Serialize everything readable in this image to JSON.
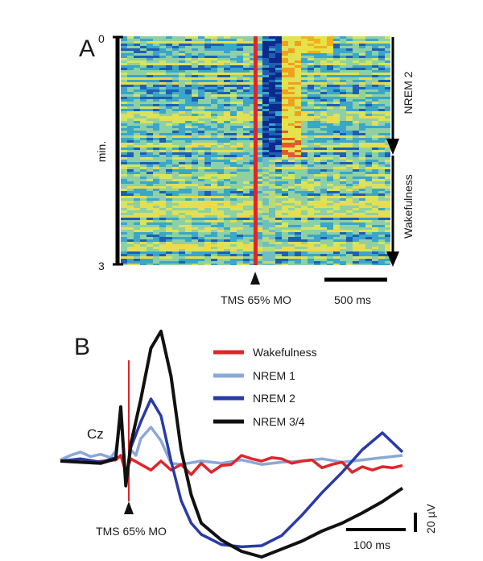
{
  "panel_a": {
    "label": "A",
    "y_axis": {
      "label": "min.",
      "tick_top": "0",
      "tick_bottom": "3"
    },
    "stage_top": "NREM 2",
    "stage_bottom": "Wakefulness",
    "stimulus_label": "TMS 65% MO",
    "scalebar_label": "500 ms",
    "colors": {
      "stimulus_line": "#e0252a",
      "low": "#0b2a8c",
      "mid": "#e6e24a",
      "high": "#f0a020"
    }
  },
  "panel_b": {
    "label": "B",
    "channel_label": "Cz",
    "stimulus_label": "TMS 65% MO",
    "scalebar_time": "100 ms",
    "scalebar_amp": "20 µV",
    "legend": [
      {
        "name": "Wakefulness",
        "color": "#e0252a"
      },
      {
        "name": "NREM 1",
        "color": "#8aa8d8"
      },
      {
        "name": "NREM 2",
        "color": "#2a3aa8"
      },
      {
        "name": "NREM 3/4",
        "color": "#111111"
      }
    ]
  },
  "chart_data": {
    "type": "line",
    "series": [
      {
        "name": "Wakefulness",
        "color": "#e0252a",
        "x": [
          0,
          30,
          55,
          60,
          65,
          70,
          80,
          90,
          100,
          110,
          120,
          130,
          140,
          150,
          160,
          170,
          180,
          190,
          200,
          210,
          220,
          230,
          240,
          250,
          260,
          270,
          280,
          290,
          300,
          310,
          320,
          330,
          340
        ],
        "y": [
          0,
          -1,
          1,
          5,
          -10,
          2,
          -3,
          -8,
          0,
          -8,
          -3,
          -12,
          -2,
          -10,
          -4,
          -3,
          5,
          2,
          0,
          3,
          2,
          -2,
          0,
          1,
          -6,
          -3,
          -1,
          -10,
          -5,
          -8,
          -5,
          -6,
          -4
        ]
      },
      {
        "name": "NREM 1",
        "color": "#8aa8d8",
        "x": [
          0,
          10,
          20,
          30,
          40,
          50,
          55,
          60,
          65,
          70,
          75,
          80,
          90,
          100,
          110,
          120,
          140,
          160,
          180,
          200,
          220,
          240,
          260,
          280,
          300,
          320,
          340
        ],
        "y": [
          1,
          5,
          8,
          4,
          6,
          3,
          9,
          40,
          -18,
          10,
          5,
          20,
          30,
          18,
          -2,
          -3,
          0,
          -2,
          1,
          -3,
          -1,
          0,
          2,
          -1,
          1,
          3,
          5
        ]
      },
      {
        "name": "NREM 2",
        "color": "#2a3aa8",
        "x": [
          0,
          20,
          40,
          55,
          60,
          65,
          70,
          80,
          90,
          100,
          110,
          120,
          130,
          140,
          160,
          180,
          200,
          220,
          240,
          260,
          280,
          300,
          320,
          340
        ],
        "y": [
          0,
          2,
          -1,
          3,
          45,
          -20,
          12,
          35,
          55,
          40,
          0,
          -35,
          -55,
          -65,
          -74,
          -76,
          -75,
          -66,
          -48,
          -28,
          -10,
          10,
          25,
          8
        ]
      },
      {
        "name": "NREM 3/4",
        "color": "#111111",
        "x": [
          0,
          20,
          40,
          55,
          60,
          65,
          70,
          80,
          90,
          100,
          110,
          120,
          130,
          140,
          160,
          180,
          200,
          220,
          240,
          260,
          280,
          300,
          320,
          340
        ],
        "y": [
          0,
          -1,
          -2,
          2,
          48,
          -22,
          15,
          55,
          100,
          115,
          75,
          10,
          -30,
          -55,
          -70,
          -80,
          -85,
          -78,
          -71,
          -62,
          -55,
          -46,
          -36,
          -24
        ]
      }
    ]
  }
}
